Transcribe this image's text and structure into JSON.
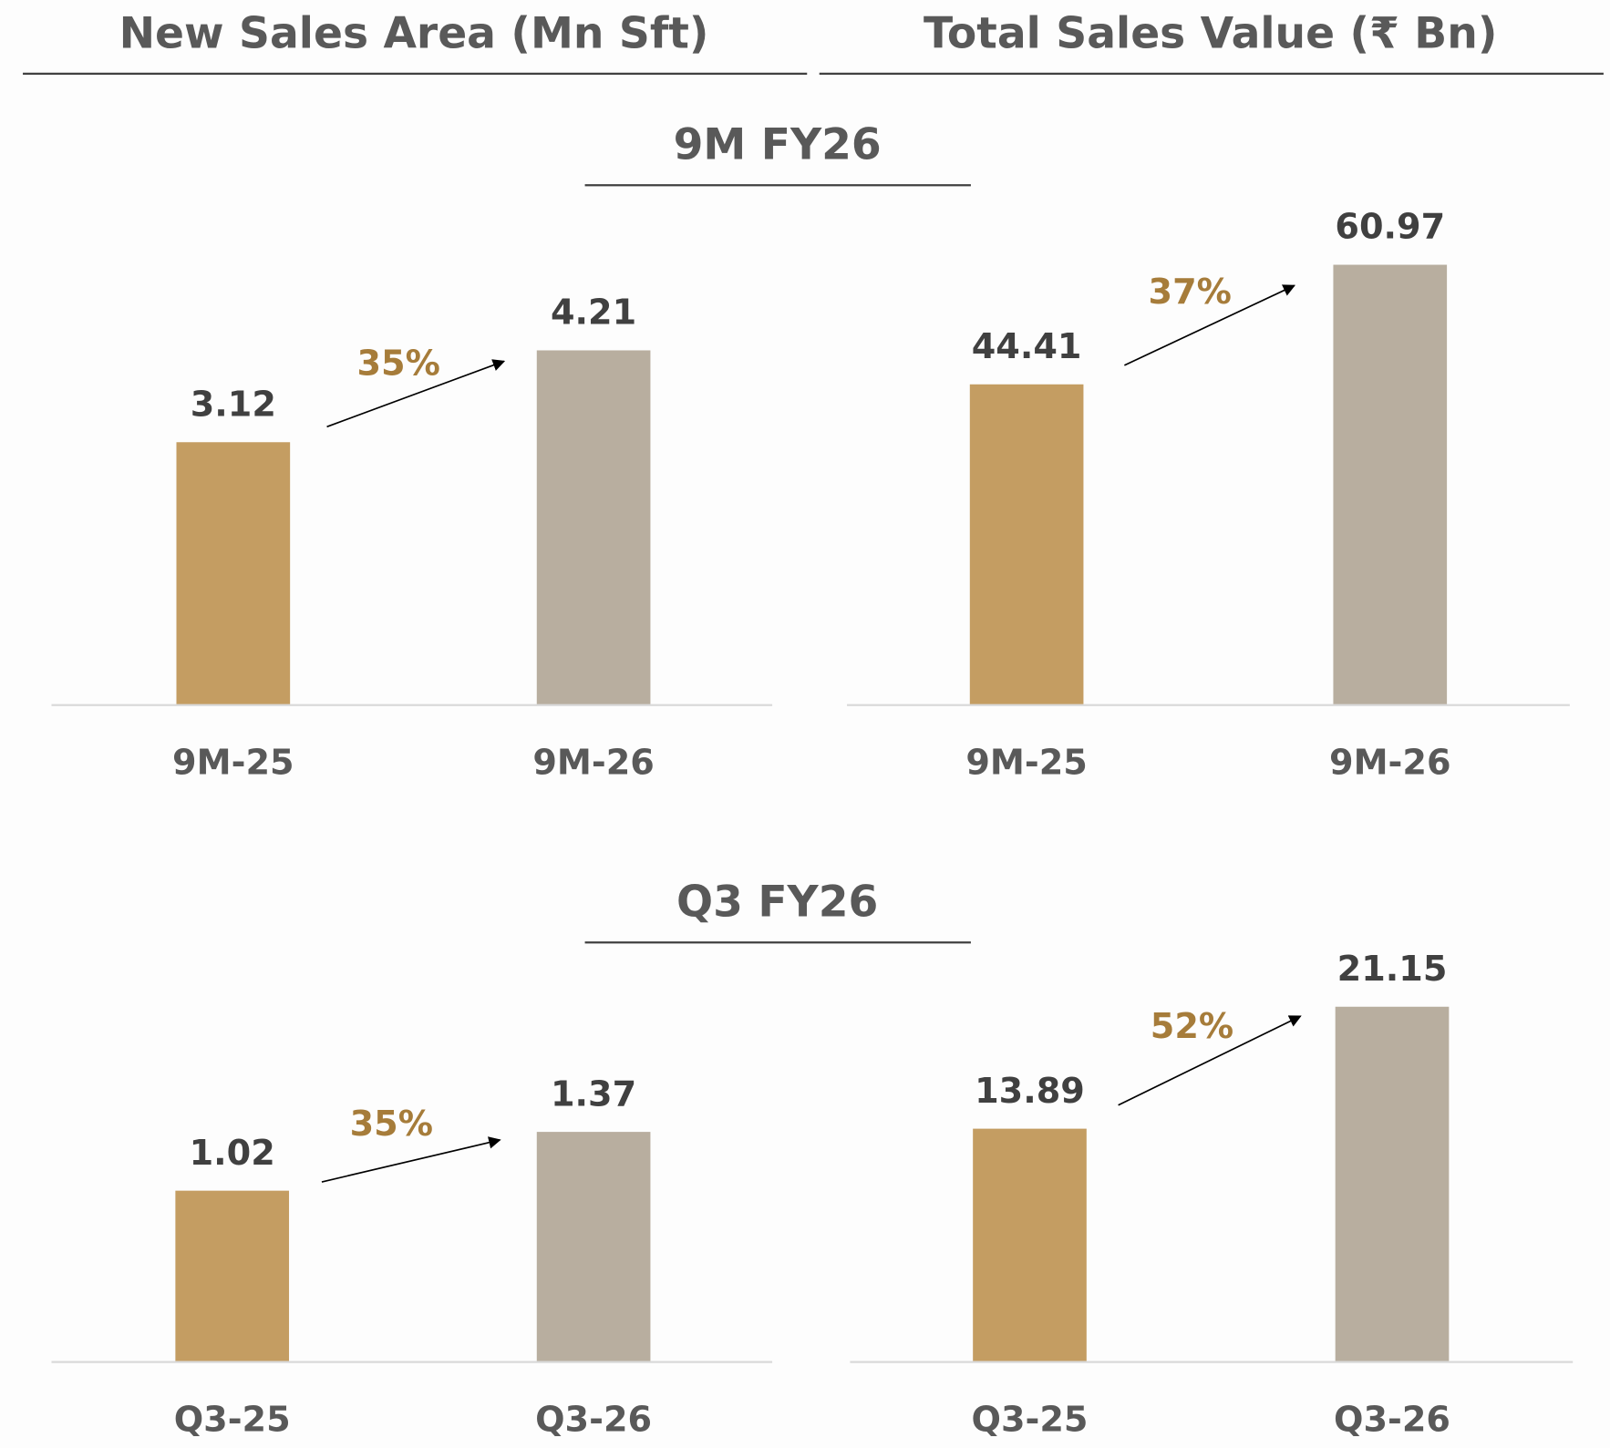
{
  "headers": [
    "New Sales Area (Mn Sft)",
    "Total Sales Value (₹ Bn)"
  ],
  "sections": [
    "9M FY26",
    "Q3 FY26"
  ],
  "chart_data": [
    {
      "type": "bar",
      "categories": [
        "9M-25",
        "9M-26"
      ],
      "values": [
        3.12,
        4.21
      ],
      "colors": [
        "#c49d62",
        "#b8ae9f"
      ],
      "annotation": "35%",
      "ylim": [
        0,
        6
      ]
    },
    {
      "type": "bar",
      "categories": [
        "9M-25",
        "9M-26"
      ],
      "values": [
        44.41,
        60.97
      ],
      "colors": [
        "#c49d62",
        "#b8ae9f"
      ],
      "annotation": "37%",
      "ylim": [
        0,
        70
      ]
    },
    {
      "type": "bar",
      "categories": [
        "Q3-25",
        "Q3-26"
      ],
      "values": [
        1.02,
        1.37
      ],
      "colors": [
        "#c49d62",
        "#b8ae9f"
      ],
      "annotation": "35%",
      "ylim": [
        0,
        2.4
      ]
    },
    {
      "type": "bar",
      "categories": [
        "Q3-25",
        "Q3-26"
      ],
      "values": [
        13.89,
        21.15
      ],
      "colors": [
        "#c49d62",
        "#b8ae9f"
      ],
      "annotation": "52%",
      "ylim": [
        0,
        24
      ]
    }
  ]
}
